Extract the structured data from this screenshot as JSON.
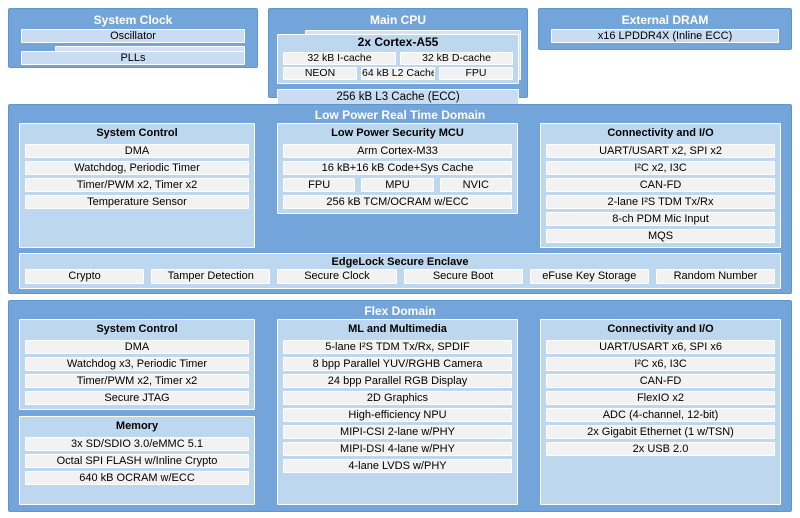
{
  "colors": {
    "domain_blue": "#74A5DA",
    "domain_border": "#5E96D0",
    "panel_blue": "#BDD7EE",
    "bar_blue": "#CADCF1",
    "bar_gray": "#F2F2F2",
    "title_white": "#FFFFFF",
    "text_black": "#000000"
  },
  "top": {
    "system_clock": {
      "title": "System Clock",
      "oscillator": "Oscillator",
      "plls": "PLLs"
    },
    "main_cpu": {
      "title": "Main CPU",
      "cortex_title": "2x Cortex-A55",
      "cache_row": [
        "32 kB I-cache",
        "32 kB D-cache"
      ],
      "exec_row": [
        "NEON",
        "64 kB L2 Cache",
        "FPU"
      ],
      "l3": "256 kB L3 Cache (ECC)"
    },
    "external_dram": {
      "title": "External DRAM",
      "item": "x16 LPDDR4X (Inline ECC)"
    }
  },
  "low_power_domain": {
    "title": "Low Power Real Time Domain",
    "system_control": {
      "title": "System Control",
      "items": [
        "DMA",
        "Watchdog, Periodic Timer",
        "Timer/PWM x2, Timer x2",
        "Temperature Sensor"
      ]
    },
    "security_mcu": {
      "title": "Low Power Security MCU",
      "items_top": [
        "Arm Cortex-M33",
        "16 kB+16 kB Code+Sys Cache"
      ],
      "sub_row": [
        "FPU",
        "MPU",
        "NVIC"
      ],
      "items_bottom": [
        "256 kB TCM/OCRAM w/ECC"
      ]
    },
    "connectivity": {
      "title": "Connectivity and I/O",
      "items": [
        "UART/USART x2, SPI x2",
        "I²C x2, I3C",
        "CAN-FD",
        "2-lane I²S TDM Tx/Rx",
        "8-ch PDM Mic Input",
        "MQS"
      ]
    },
    "secure_enclave": {
      "title": "EdgeLock Secure Enclave",
      "items": [
        "Crypto",
        "Tamper Detection",
        "Secure Clock",
        "Secure Boot",
        "eFuse Key Storage",
        "Random Number"
      ]
    }
  },
  "flex_domain": {
    "title": "Flex Domain",
    "system_control": {
      "title": "System Control",
      "items": [
        "DMA",
        "Watchdog x3, Periodic Timer",
        "Timer/PWM x2, Timer x2",
        "Secure JTAG"
      ]
    },
    "memory": {
      "title": "Memory",
      "items": [
        "3x SD/SDIO 3.0/eMMC 5.1",
        "Octal SPI FLASH w/Inline Crypto",
        "640 kB OCRAM w/ECC"
      ]
    },
    "ml_multimedia": {
      "title": "ML and Multimedia",
      "items": [
        "5-lane I²S TDM Tx/Rx, SPDIF",
        "8 bpp Parallel YUV/RGHB Camera",
        "24 bpp Parallel RGB Display",
        "2D Graphics",
        "High-efficiency NPU",
        "MIPI-CSI 2-lane w/PHY",
        "MIPI-DSI 4-lane w/PHY",
        "4-lane LVDS w/PHY"
      ]
    },
    "connectivity": {
      "title": "Connectivity and I/O",
      "items": [
        "UART/USART x6, SPI x6",
        "I²C x6, I3C",
        "CAN-FD",
        "FlexIO x2",
        "ADC (4-channel, 12-bit)",
        "2x Gigabit Ethernet (1 w/TSN)",
        "2x USB 2.0"
      ]
    }
  }
}
